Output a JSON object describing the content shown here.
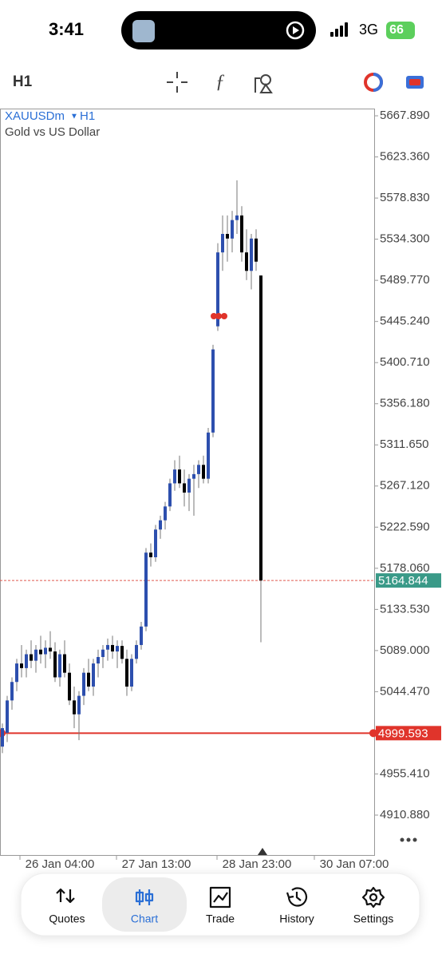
{
  "status": {
    "time": "3:41",
    "network": "3G",
    "battery": "66"
  },
  "toolbar": {
    "timeframe": "H1"
  },
  "chart_data": {
    "type": "candlestick",
    "symbol": "XAUUSDm",
    "timeframe": "H1",
    "description": "Gold vs US Dollar",
    "up_color": "#2d4fae",
    "down_color": "#000000",
    "candles": [
      [
        4985,
        5010,
        4978,
        5005
      ],
      [
        5000,
        5040,
        4990,
        5035
      ],
      [
        5035,
        5060,
        5025,
        5055
      ],
      [
        5055,
        5080,
        5045,
        5075
      ],
      [
        5075,
        5095,
        5060,
        5070
      ],
      [
        5070,
        5090,
        5060,
        5085
      ],
      [
        5085,
        5100,
        5070,
        5078
      ],
      [
        5078,
        5095,
        5065,
        5090
      ],
      [
        5090,
        5105,
        5075,
        5085
      ],
      [
        5085,
        5100,
        5070,
        5092
      ],
      [
        5092,
        5110,
        5080,
        5088
      ],
      [
        5088,
        5098,
        5055,
        5060
      ],
      [
        5060,
        5090,
        5050,
        5085
      ],
      [
        5085,
        5100,
        5060,
        5065
      ],
      [
        5065,
        5075,
        5030,
        5035
      ],
      [
        5035,
        5050,
        5005,
        5020
      ],
      [
        5020,
        5045,
        4992,
        5040
      ],
      [
        5040,
        5070,
        5030,
        5065
      ],
      [
        5065,
        5080,
        5045,
        5050
      ],
      [
        5050,
        5080,
        5040,
        5075
      ],
      [
        5075,
        5090,
        5060,
        5082
      ],
      [
        5082,
        5095,
        5070,
        5090
      ],
      [
        5090,
        5102,
        5078,
        5095
      ],
      [
        5095,
        5105,
        5080,
        5088
      ],
      [
        5088,
        5100,
        5070,
        5094
      ],
      [
        5094,
        5100,
        5075,
        5080
      ],
      [
        5080,
        5090,
        5040,
        5050
      ],
      [
        5050,
        5085,
        5045,
        5080
      ],
      [
        5080,
        5100,
        5075,
        5095
      ],
      [
        5095,
        5120,
        5090,
        5115
      ],
      [
        5115,
        5200,
        5110,
        5195
      ],
      [
        5195,
        5205,
        5180,
        5190
      ],
      [
        5190,
        5225,
        5185,
        5220
      ],
      [
        5220,
        5235,
        5210,
        5230
      ],
      [
        5230,
        5250,
        5220,
        5245
      ],
      [
        5245,
        5275,
        5240,
        5270
      ],
      [
        5270,
        5295,
        5262,
        5285
      ],
      [
        5285,
        5300,
        5265,
        5270
      ],
      [
        5270,
        5285,
        5245,
        5260
      ],
      [
        5260,
        5280,
        5240,
        5275
      ],
      [
        5275,
        5290,
        5235,
        5280
      ],
      [
        5280,
        5295,
        5265,
        5290
      ],
      [
        5290,
        5300,
        5270,
        5275
      ],
      [
        5275,
        5330,
        5270,
        5325
      ],
      [
        5325,
        5420,
        5320,
        5415
      ],
      [
        5440,
        5530,
        5435,
        5520
      ],
      [
        5520,
        5560,
        5500,
        5540
      ],
      [
        5540,
        5560,
        5510,
        5535
      ],
      [
        5535,
        5565,
        5520,
        5555
      ],
      [
        5555,
        5598,
        5540,
        5560
      ],
      [
        5560,
        5570,
        5510,
        5520
      ],
      [
        5520,
        5545,
        5490,
        5500
      ],
      [
        5500,
        5540,
        5480,
        5535
      ],
      [
        5535,
        5545,
        5500,
        5510
      ],
      [
        5495,
        5495,
        5098,
        5164.844
      ]
    ],
    "ylim": [
      4866.8,
      5675.7
    ],
    "yticks": [
      {
        "value": 5667.89,
        "label": "5667.890"
      },
      {
        "value": 5623.36,
        "label": "5623.360"
      },
      {
        "value": 5578.83,
        "label": "5578.830"
      },
      {
        "value": 5534.3,
        "label": "5534.300"
      },
      {
        "value": 5489.77,
        "label": "5489.770"
      },
      {
        "value": 5445.24,
        "label": "5445.240"
      },
      {
        "value": 5400.71,
        "label": "5400.710"
      },
      {
        "value": 5356.18,
        "label": "5356.180"
      },
      {
        "value": 5311.65,
        "label": "5311.650"
      },
      {
        "value": 5267.12,
        "label": "5267.120"
      },
      {
        "value": 5222.59,
        "label": "5222.590"
      },
      {
        "value": 5178.06,
        "label": "5178.060"
      },
      {
        "value": 5133.53,
        "label": "5133.530"
      },
      {
        "value": 5089,
        "label": "5089.000"
      },
      {
        "value": 5044.47,
        "label": "5044.470"
      },
      {
        "value": 4955.41,
        "label": "4955.410"
      },
      {
        "value": 4910.88,
        "label": "4910.880"
      }
    ],
    "x_labels": [
      "26 Jan 04:00",
      "27 Jan 13:00",
      "28 Jan 23:00",
      "30 Jan 07:00"
    ],
    "price_lines": [
      {
        "value": 5164.844,
        "color": "#e05a4f",
        "label_color": "#3a9a88",
        "style": "dashed"
      },
      {
        "value": 4999.593,
        "color": "#e0342b",
        "label_color": "#e0342b",
        "style": "solid"
      }
    ]
  },
  "nav": {
    "items": [
      "Quotes",
      "Chart",
      "Trade",
      "History",
      "Settings"
    ],
    "active": "Chart"
  }
}
